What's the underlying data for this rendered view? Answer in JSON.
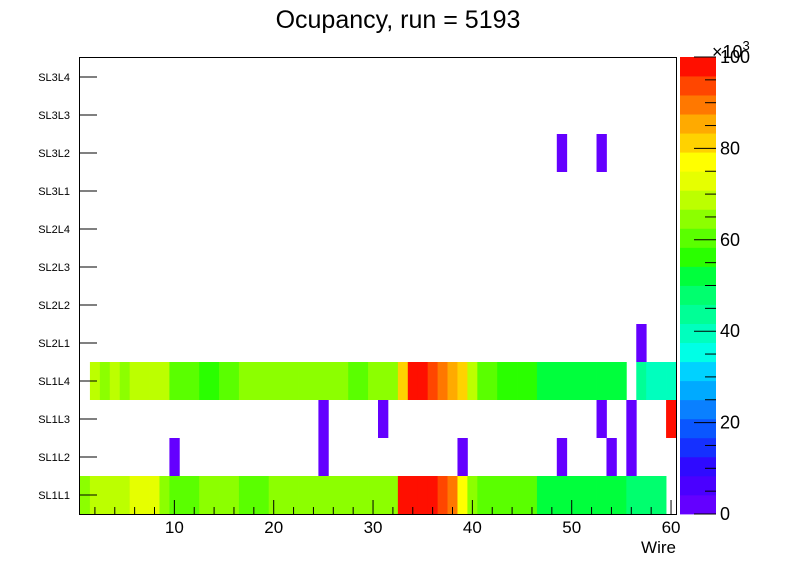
{
  "chart_data": {
    "type": "heatmap",
    "title": "Ocupancy, run = 5193",
    "xlabel": "Wire",
    "ylabel": "",
    "xlim": [
      0.5,
      60.5
    ],
    "x_ticks": [
      10,
      20,
      30,
      40,
      50,
      60
    ],
    "y_categories": [
      "SL1L1",
      "SL1L2",
      "SL1L3",
      "SL1L4",
      "SL2L1",
      "SL2L2",
      "SL2L3",
      "SL2L4",
      "SL3L1",
      "SL3L2",
      "SL3L3",
      "SL3L4"
    ],
    "z_range": [
      0,
      100000
    ],
    "z_ticks": [
      0,
      20,
      40,
      60,
      80,
      100
    ],
    "z_multiplier": "×10",
    "z_exponent": "3",
    "palette": [
      "#6400ff",
      "#4a00ff",
      "#2f0aff",
      "#1530ff",
      "#0a56ff",
      "#0a80ff",
      "#00aaff",
      "#00d2ff",
      "#00ffe6",
      "#00ffbe",
      "#00ff96",
      "#00ff6e",
      "#00ff3c",
      "#2aff00",
      "#5aff00",
      "#8cff00",
      "#bcff00",
      "#e6ff00",
      "#ffff00",
      "#ffd200",
      "#ffaa00",
      "#ff7800",
      "#ff4600",
      "#ff0f00"
    ],
    "rows": {
      "SL1L1": [
        66,
        68,
        70,
        68,
        70,
        71,
        71,
        71,
        63,
        61,
        61,
        61,
        63,
        63,
        64,
        64,
        62,
        62,
        62,
        66,
        66,
        66,
        66,
        66,
        64,
        64,
        66,
        66,
        66,
        66,
        66,
        66,
        100,
        100,
        100,
        100,
        93,
        89,
        75,
        64,
        61,
        61,
        61,
        61,
        61,
        61,
        52,
        52,
        52,
        52,
        52,
        52,
        52,
        52,
        52,
        48,
        48,
        48,
        48,
        0
      ],
      "SL1L2": [
        0,
        0,
        0,
        0,
        0,
        0,
        0,
        0,
        0,
        2,
        0,
        0,
        0,
        0,
        0,
        0,
        0,
        0,
        0,
        0,
        0,
        0,
        0,
        0,
        2,
        0,
        0,
        0,
        0,
        0,
        0,
        0,
        0,
        0,
        0,
        0,
        0,
        0,
        2,
        0,
        0,
        0,
        0,
        0,
        0,
        0,
        0,
        0,
        2,
        0,
        0,
        0,
        0,
        2,
        0,
        2,
        0,
        0,
        0,
        0
      ],
      "SL1L3": [
        0,
        0,
        0,
        0,
        0,
        0,
        0,
        0,
        0,
        0,
        0,
        0,
        0,
        0,
        0,
        0,
        0,
        0,
        0,
        0,
        0,
        0,
        0,
        0,
        2,
        0,
        0,
        0,
        0,
        0,
        2,
        0,
        0,
        0,
        0,
        0,
        0,
        0,
        0,
        0,
        0,
        0,
        0,
        0,
        0,
        0,
        0,
        0,
        0,
        0,
        0,
        0,
        2,
        0,
        0,
        2,
        0,
        0,
        0,
        100
      ],
      "SL1L4": [
        0,
        67,
        64,
        70,
        64,
        70,
        67,
        67,
        67,
        62,
        62,
        60,
        58,
        58,
        60,
        60,
        64,
        64,
        64,
        64,
        64,
        64,
        64,
        64,
        64,
        64,
        64,
        62,
        62,
        64,
        64,
        64,
        82,
        100,
        100,
        94,
        89,
        85,
        82,
        67,
        62,
        62,
        56,
        56,
        56,
        56,
        50,
        50,
        50,
        50,
        50,
        50,
        50,
        50,
        50,
        0,
        45,
        38,
        38,
        38
      ],
      "SL2L1": [
        0,
        0,
        0,
        0,
        0,
        0,
        0,
        0,
        0,
        0,
        0,
        0,
        0,
        0,
        0,
        0,
        0,
        0,
        0,
        0,
        0,
        0,
        0,
        0,
        0,
        0,
        0,
        0,
        0,
        0,
        0,
        0,
        0,
        0,
        0,
        0,
        0,
        0,
        0,
        0,
        0,
        0,
        0,
        0,
        0,
        0,
        0,
        0,
        0,
        0,
        0,
        0,
        0,
        0,
        0,
        0,
        2,
        0,
        0,
        0
      ],
      "SL2L2": [
        0,
        0,
        0,
        0,
        0,
        0,
        0,
        0,
        0,
        0,
        0,
        0,
        0,
        0,
        0,
        0,
        0,
        0,
        0,
        0,
        0,
        0,
        0,
        0,
        0,
        0,
        0,
        0,
        0,
        0,
        0,
        0,
        0,
        0,
        0,
        0,
        0,
        0,
        0,
        0,
        0,
        0,
        0,
        0,
        0,
        0,
        0,
        0,
        0,
        0,
        0,
        0,
        0,
        0,
        0,
        0,
        0,
        0,
        0,
        0
      ],
      "SL2L3": [
        0,
        0,
        0,
        0,
        0,
        0,
        0,
        0,
        0,
        0,
        0,
        0,
        0,
        0,
        0,
        0,
        0,
        0,
        0,
        0,
        0,
        0,
        0,
        0,
        0,
        0,
        0,
        0,
        0,
        0,
        0,
        0,
        0,
        0,
        0,
        0,
        0,
        0,
        0,
        0,
        0,
        0,
        0,
        0,
        0,
        0,
        0,
        0,
        0,
        0,
        0,
        0,
        0,
        0,
        0,
        0,
        0,
        0,
        0,
        0
      ],
      "SL2L4": [
        0,
        0,
        0,
        0,
        0,
        0,
        0,
        0,
        0,
        0,
        0,
        0,
        0,
        0,
        0,
        0,
        0,
        0,
        0,
        0,
        0,
        0,
        0,
        0,
        0,
        0,
        0,
        0,
        0,
        0,
        0,
        0,
        0,
        0,
        0,
        0,
        0,
        0,
        0,
        0,
        0,
        0,
        0,
        0,
        0,
        0,
        0,
        0,
        0,
        0,
        0,
        0,
        0,
        0,
        0,
        0,
        0,
        0,
        0,
        0
      ],
      "SL3L1": [
        0,
        0,
        0,
        0,
        0,
        0,
        0,
        0,
        0,
        0,
        0,
        0,
        0,
        0,
        0,
        0,
        0,
        0,
        0,
        0,
        0,
        0,
        0,
        0,
        0,
        0,
        0,
        0,
        0,
        0,
        0,
        0,
        0,
        0,
        0,
        0,
        0,
        0,
        0,
        0,
        0,
        0,
        0,
        0,
        0,
        0,
        0,
        0,
        0,
        0,
        0,
        0,
        0,
        0,
        0,
        0,
        0,
        0,
        0,
        0
      ],
      "SL3L2": [
        0,
        0,
        0,
        0,
        0,
        0,
        0,
        0,
        0,
        0,
        0,
        0,
        0,
        0,
        0,
        0,
        0,
        0,
        0,
        0,
        0,
        0,
        0,
        0,
        0,
        0,
        0,
        0,
        0,
        0,
        0,
        0,
        0,
        0,
        0,
        0,
        0,
        0,
        0,
        0,
        0,
        0,
        0,
        0,
        0,
        0,
        0,
        0,
        2,
        0,
        0,
        0,
        2,
        0,
        0,
        0,
        0,
        0,
        0,
        0
      ],
      "SL3L3": [
        0,
        0,
        0,
        0,
        0,
        0,
        0,
        0,
        0,
        0,
        0,
        0,
        0,
        0,
        0,
        0,
        0,
        0,
        0,
        0,
        0,
        0,
        0,
        0,
        0,
        0,
        0,
        0,
        0,
        0,
        0,
        0,
        0,
        0,
        0,
        0,
        0,
        0,
        0,
        0,
        0,
        0,
        0,
        0,
        0,
        0,
        0,
        0,
        0,
        0,
        0,
        0,
        0,
        0,
        0,
        0,
        0,
        0,
        0,
        0
      ],
      "SL3L4": [
        0,
        0,
        0,
        0,
        0,
        0,
        0,
        0,
        0,
        0,
        0,
        0,
        0,
        0,
        0,
        0,
        0,
        0,
        0,
        0,
        0,
        0,
        0,
        0,
        0,
        0,
        0,
        0,
        0,
        0,
        0,
        0,
        0,
        0,
        0,
        0,
        0,
        0,
        0,
        0,
        0,
        0,
        0,
        0,
        0,
        0,
        0,
        0,
        0,
        0,
        0,
        0,
        0,
        0,
        0,
        0,
        0,
        0,
        0,
        0
      ]
    },
    "value_unit_note": "cell values are in units of 10^3 counts",
    "grid": false,
    "legend": "color bar right"
  }
}
